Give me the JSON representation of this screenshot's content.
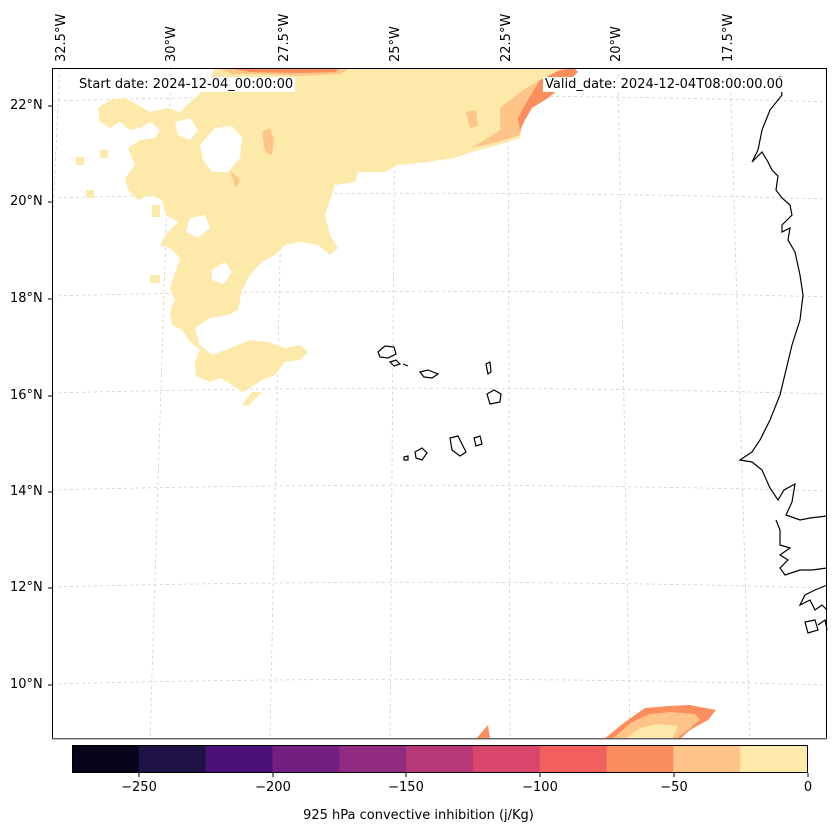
{
  "header": {
    "start_date": "Start date: 2024-12-04_00:00:00",
    "valid_date": "Valid_date: 2024-12-04T08:00:00.00"
  },
  "map": {
    "lon_labels": [
      "32.5°W",
      "30°W",
      "27.5°W",
      "25°W",
      "22.5°W",
      "20°W",
      "17.5°W"
    ],
    "lat_labels": [
      "22°N",
      "20°N",
      "18°N",
      "16°N",
      "14°N",
      "12°N",
      "10°N"
    ],
    "field": "925 hPa convective inhibition",
    "islands": "Cape Verde",
    "coast": "West Africa"
  },
  "colorbar": {
    "label": "925 hPa convective inhibition (j/Kg)",
    "ticks": [
      "−250",
      "−200",
      "−150",
      "−100",
      "−50",
      "0"
    ],
    "range": [
      -275,
      0
    ],
    "colors": [
      "#05041a",
      "#1f1346",
      "#4d0f7a",
      "#721f81",
      "#912b81",
      "#b73779",
      "#d9466b",
      "#f1605d",
      "#fc8d5c",
      "#fec488",
      "#fde9a9"
    ]
  }
}
